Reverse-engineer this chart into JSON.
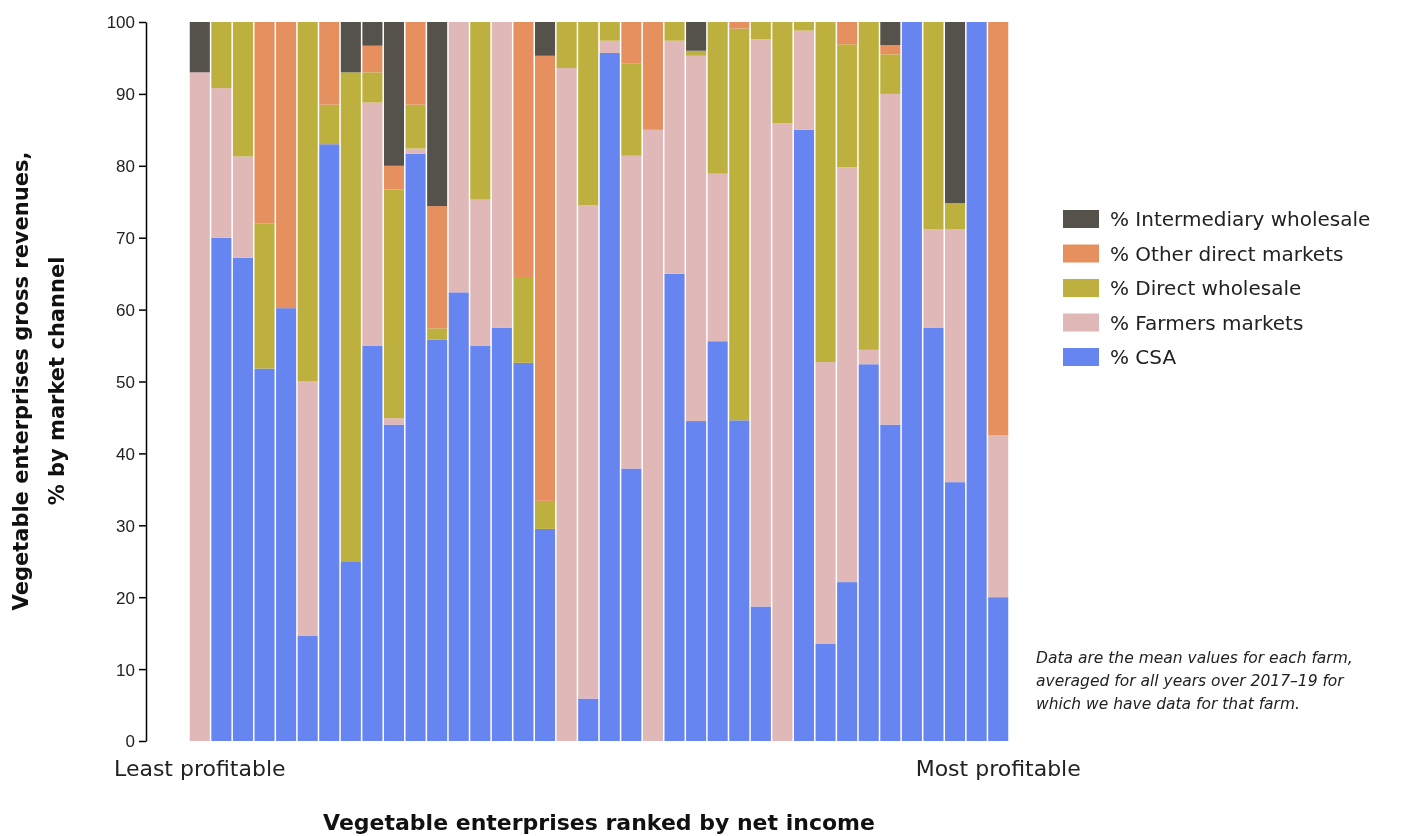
{
  "chart_data": {
    "type": "bar",
    "stacked": true,
    "categories": [
      "Least profitable",
      null,
      null,
      null,
      null,
      null,
      null,
      null,
      null,
      null,
      null,
      null,
      null,
      null,
      null,
      null,
      null,
      null,
      null,
      null,
      null,
      null,
      null,
      null,
      null,
      null,
      null,
      null,
      null,
      null,
      null,
      null,
      null,
      null,
      null,
      null,
      null,
      "Most profitable"
    ],
    "series": [
      {
        "name": "% CSA",
        "color": "#6785f0",
        "values": [
          0,
          70,
          67.2,
          51.8,
          60.2,
          14.6,
          83,
          25,
          55,
          44,
          81.7,
          55.8,
          62.4,
          55,
          57.5,
          52.6,
          29.5,
          0,
          5.9,
          95.7,
          37.9,
          0,
          65,
          44.5,
          55.6,
          44.6,
          18.7,
          0,
          85,
          13.5,
          22.1,
          52.4,
          44,
          100,
          57.5,
          36,
          100,
          20
        ]
      },
      {
        "name": "% Farmers markets",
        "color": "#e0b8b8",
        "values": [
          93,
          20.8,
          14.1,
          0,
          0,
          35.4,
          0,
          0,
          33.8,
          0.9,
          0.7,
          0,
          37.6,
          20.3,
          42.5,
          0,
          0,
          93.6,
          68.6,
          1.7,
          43.5,
          85,
          32.4,
          50.8,
          23.3,
          0,
          78.9,
          85.9,
          13.8,
          39.2,
          57.7,
          2,
          46,
          0,
          13.7,
          35.2,
          0,
          22.5
        ]
      },
      {
        "name": "% Direct wholesale",
        "color": "#bdb03e",
        "values": [
          0,
          9.2,
          18.7,
          20.2,
          0,
          50,
          5.5,
          68,
          4.2,
          31.8,
          6.1,
          1.6,
          0,
          24.7,
          0,
          11.8,
          3.9,
          6.4,
          25.5,
          2.6,
          12.8,
          0,
          2.6,
          0.7,
          21.1,
          54.5,
          2.4,
          14.1,
          1.2,
          47.3,
          17.1,
          45.6,
          5.5,
          0,
          28.8,
          3.6,
          0,
          0
        ]
      },
      {
        "name": "% Other direct markets",
        "color": "#e69060",
        "values": [
          0,
          0,
          0,
          28,
          39.8,
          0,
          11.5,
          0,
          3.7,
          3.3,
          11.5,
          17,
          0,
          0,
          0,
          35.6,
          61.9,
          0,
          0,
          0,
          5.8,
          15,
          0,
          0,
          0,
          0.9,
          0,
          0,
          0,
          0,
          3.1,
          0,
          1.3,
          0,
          0,
          0,
          0,
          57.5
        ]
      },
      {
        "name": "% Intermediary wholesale",
        "color": "#55524c",
        "values": [
          7,
          0,
          0,
          0,
          0,
          0,
          0,
          7,
          3.3,
          20,
          0,
          25.6,
          0,
          0,
          0,
          0,
          4.7,
          0,
          0,
          0,
          0,
          0,
          0,
          4,
          0,
          0,
          0,
          0,
          0,
          0,
          0,
          0,
          3.2,
          0,
          0,
          25.2,
          0,
          0
        ]
      }
    ],
    "ylim": [
      0,
      100
    ],
    "yticks": [
      0,
      10,
      20,
      30,
      40,
      50,
      60,
      70,
      80,
      90,
      100
    ],
    "xlabel": "Vegetable enterprises ranked by net income",
    "ylabel": "Vegetable enterprises gross revenues,\n% by market channel",
    "legend": "right",
    "annotations": [
      "Data are the mean values for each farm, averaged for all years over 2017–19 for which we have data for that farm."
    ]
  }
}
